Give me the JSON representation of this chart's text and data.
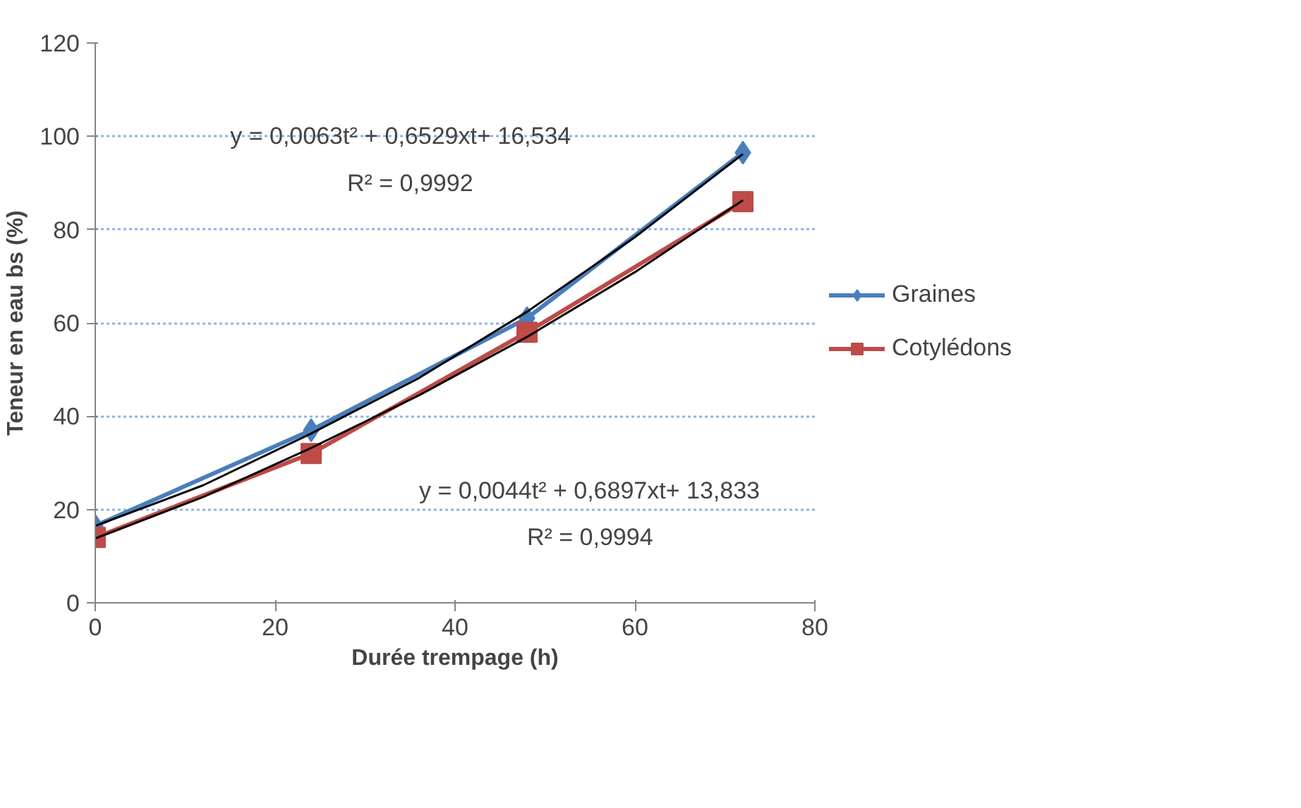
{
  "chart_data": {
    "type": "line",
    "xlabel": "Durée trempage (h)",
    "ylabel": "Teneur en eau bs (%)",
    "x": [
      0,
      24,
      48,
      72
    ],
    "xlim": [
      0,
      80
    ],
    "xticks": [
      0,
      20,
      40,
      60,
      80
    ],
    "ylim": [
      0,
      120
    ],
    "yticks": [
      0,
      20,
      40,
      60,
      80,
      100,
      120
    ],
    "grid": "y",
    "legend": "right",
    "series": [
      {
        "name": "Graines",
        "color": "#4a7ebb",
        "marker": "diamond",
        "values": [
          16.5,
          37,
          61,
          96.5
        ]
      },
      {
        "name": "Cotylédons",
        "color": "#be4b48",
        "marker": "square",
        "values": [
          14,
          32,
          58,
          86
        ]
      },
      {
        "color": "#000000",
        "marker": "none",
        "x": [
          0,
          12,
          24,
          36,
          48,
          60,
          72
        ],
        "values": [
          16.5,
          25.2,
          36.3,
          48.2,
          62.4,
          78.4,
          96.2
        ]
      },
      {
        "color": "#000000",
        "marker": "none",
        "x": [
          0,
          12,
          24,
          36,
          48,
          60,
          72
        ],
        "values": [
          13.8,
          22.7,
          33.2,
          44.5,
          57.0,
          70.9,
          86.3
        ]
      }
    ],
    "annotations": [
      "y = 0,0063t² + 0,6529xt+ 16,534",
      "R² = 0,9992",
      "y = 0,0044t² + 0,6897xt+ 13,833",
      "R² = 0,9994"
    ]
  }
}
